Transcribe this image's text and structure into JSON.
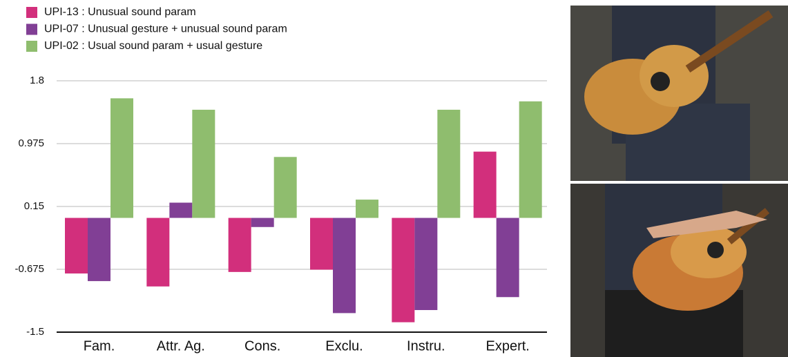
{
  "chart_data": {
    "type": "bar",
    "categories": [
      "Fam.",
      "Attr. Ag.",
      "Cons.",
      "Exclu.",
      "Instru.",
      "Expert."
    ],
    "series": [
      {
        "name": "UPI-13 : Unusual sound param",
        "color": "#d22f7c",
        "values": [
          -0.73,
          -0.9,
          -0.71,
          -0.68,
          -1.37,
          0.87
        ]
      },
      {
        "name": "UPI-07 : Unusual gesture + unusual sound param",
        "color": "#813f95",
        "values": [
          -0.83,
          0.2,
          -0.12,
          -1.25,
          -1.21,
          -1.04
        ]
      },
      {
        "name": "UPI-02 : Usual sound param + usual gesture",
        "color": "#8fbd6e",
        "values": [
          1.57,
          1.42,
          0.8,
          0.24,
          1.42,
          1.53
        ]
      }
    ],
    "ylim": [
      -1.5,
      1.8
    ],
    "yticks": [
      -1.5,
      -0.675,
      0.15,
      0.975,
      1.8
    ],
    "grid": true
  }
}
